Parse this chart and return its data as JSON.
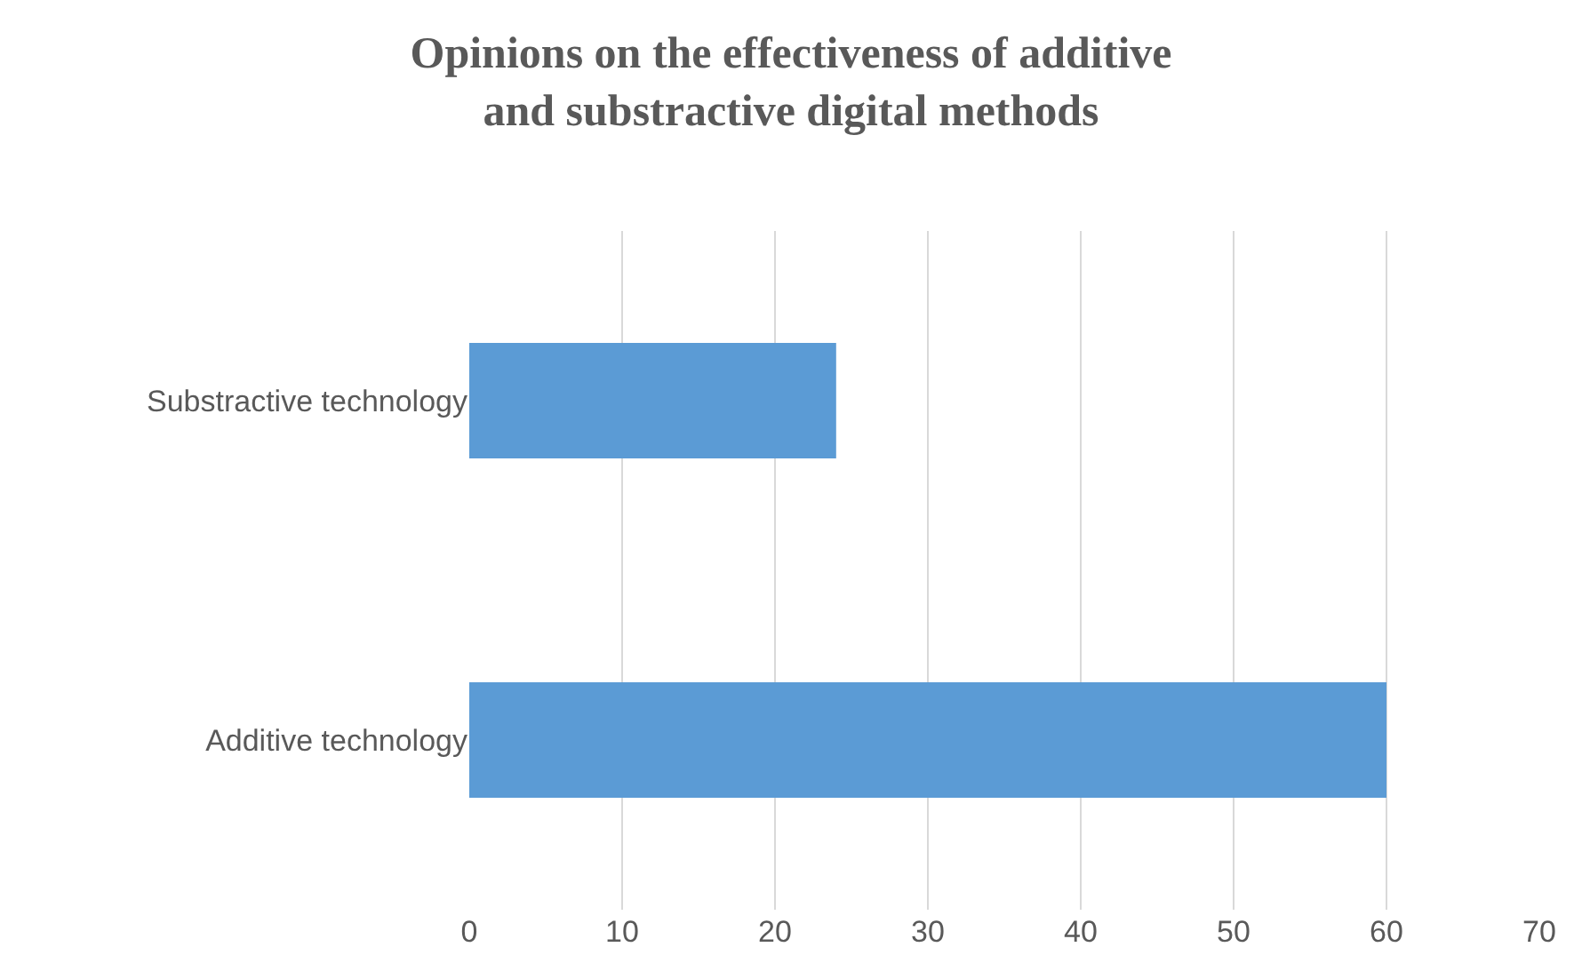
{
  "chart_data": {
    "type": "bar",
    "orientation": "horizontal",
    "title": "Opinions on the effectiveness of additive and substractive digital methods",
    "categories": [
      "Substractive technology",
      "Additive technology"
    ],
    "values": [
      24,
      60
    ],
    "color": "#5b9bd5",
    "xlim": [
      0,
      70
    ],
    "xticks": [
      0,
      10,
      20,
      30,
      40,
      50,
      60,
      70
    ],
    "grid": "x"
  }
}
